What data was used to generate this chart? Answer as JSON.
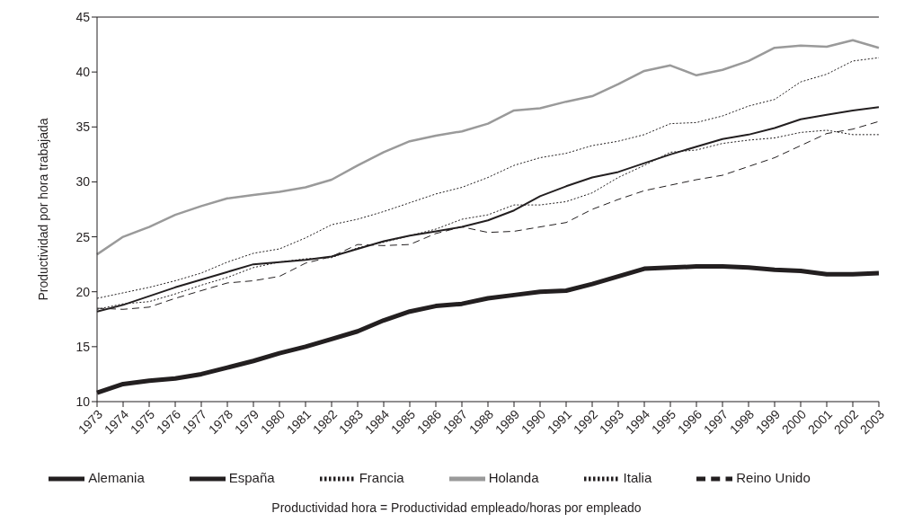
{
  "chart_data": {
    "type": "line",
    "ylabel": "Productividad por hora trabajada",
    "annotations": [
      "Productividad hora = Productividad empleado/horas por empleado"
    ],
    "categories": [
      "1973",
      "1974",
      "1975",
      "1976",
      "1977",
      "1978",
      "1979",
      "1980",
      "1981",
      "1982",
      "1983",
      "1984",
      "1985",
      "1986",
      "1987",
      "1988",
      "1989",
      "1990",
      "1991",
      "1992",
      "1993",
      "1994",
      "1995",
      "1996",
      "1997",
      "1998",
      "1999",
      "2000",
      "2001",
      "2002",
      "2003"
    ],
    "series": [
      {
        "name": "Alemania",
        "color": "#231f20",
        "line_style": "solid",
        "values": [
          18.2,
          18.8,
          19.6,
          20.4,
          21.1,
          21.8,
          22.5,
          22.7,
          22.9,
          23.2,
          23.9,
          24.6,
          25.1,
          25.5,
          25.9,
          26.5,
          27.4,
          28.7,
          29.6,
          30.4,
          30.9,
          31.7,
          32.5,
          33.2,
          33.9,
          34.3,
          34.9,
          35.7,
          36.1,
          36.5,
          36.8
        ]
      },
      {
        "name": "Holanda",
        "color": "#9a9a9a",
        "line_style": "solid",
        "values": [
          23.4,
          25.0,
          25.9,
          27.0,
          27.8,
          28.5,
          28.8,
          29.1,
          29.5,
          30.2,
          31.5,
          32.7,
          33.7,
          34.2,
          34.6,
          35.3,
          36.5,
          36.7,
          37.3,
          37.8,
          38.9,
          40.1,
          40.6,
          39.7,
          40.2,
          41.0,
          42.2,
          42.4,
          42.3,
          42.9,
          42.2
        ]
      },
      {
        "name": "Francia",
        "color": "#231f20",
        "line_style": "dotted",
        "values": [
          19.4,
          19.9,
          20.4,
          21.0,
          21.7,
          22.7,
          23.5,
          23.9,
          24.9,
          26.1,
          26.6,
          27.3,
          28.1,
          28.9,
          29.5,
          30.4,
          31.5,
          32.2,
          32.6,
          33.3,
          33.7,
          34.3,
          35.3,
          35.4,
          36.0,
          36.9,
          37.5,
          39.1,
          39.8,
          41.0,
          41.3
        ]
      },
      {
        "name": "Reino Unido",
        "color": "#231f20",
        "line_style": "dashed",
        "values": [
          18.5,
          18.4,
          18.6,
          19.4,
          20.1,
          20.8,
          21.0,
          21.4,
          22.6,
          23.2,
          24.3,
          24.2,
          24.3,
          25.3,
          25.9,
          25.4,
          25.5,
          25.9,
          26.3,
          27.5,
          28.4,
          29.2,
          29.7,
          30.2,
          30.6,
          31.4,
          32.2,
          33.3,
          34.4,
          34.8,
          35.5
        ]
      },
      {
        "name": "Italia",
        "color": "#231f20",
        "line_style": "dotted",
        "values": [
          18.4,
          18.9,
          19.1,
          19.8,
          20.6,
          21.3,
          22.2,
          22.7,
          23.0,
          23.1,
          24.0,
          24.5,
          25.1,
          25.7,
          26.6,
          27.0,
          27.9,
          27.9,
          28.2,
          29.0,
          30.4,
          31.5,
          32.7,
          32.9,
          33.5,
          33.8,
          34.0,
          34.5,
          34.7,
          34.3,
          34.3
        ]
      },
      {
        "name": "España",
        "color": "#231f20",
        "line_style": "solid",
        "values": [
          10.8,
          11.6,
          11.9,
          12.1,
          12.5,
          13.1,
          13.7,
          14.4,
          15.0,
          15.7,
          16.4,
          17.4,
          18.2,
          18.7,
          18.9,
          19.4,
          19.7,
          20.0,
          20.1,
          20.7,
          21.4,
          22.1,
          22.2,
          22.3,
          22.3,
          22.2,
          22.0,
          21.9,
          21.6,
          21.6,
          21.7
        ]
      }
    ],
    "ylim": [
      10,
      45
    ],
    "yticks": [
      10,
      15,
      20,
      25,
      30,
      35,
      40,
      45
    ],
    "grid": false,
    "legend": "bottom",
    "marker": "none"
  }
}
